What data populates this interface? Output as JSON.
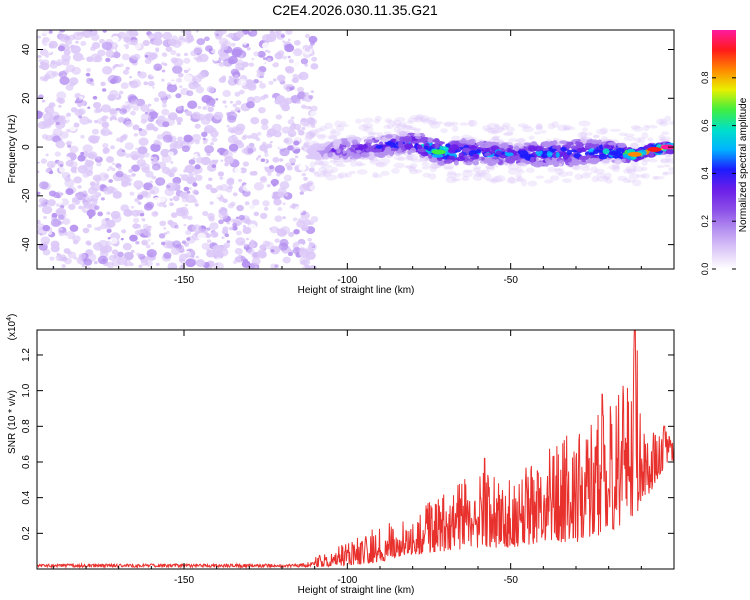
{
  "title": "C2E4.2026.030.11.35.G21",
  "chart_data": [
    {
      "type": "heatmap",
      "title": "C2E4.2026.030.11.35.G21",
      "xlabel": "Height of straight line (km)",
      "ylabel": "Frequency (Hz)",
      "xlim": [
        -195,
        0
      ],
      "ylim": [
        -50,
        48
      ],
      "xticks": [
        -150,
        -100,
        -50
      ],
      "xtick_labels": [
        "-150",
        "-100",
        "-50"
      ],
      "yticks": [
        -40,
        -20,
        0,
        20,
        40
      ],
      "ytick_labels": [
        "-40",
        "-20",
        "0",
        "20",
        "40"
      ],
      "colorbar": {
        "label": "Normalized spectral amplitude",
        "range": [
          0,
          1
        ],
        "ticks": [
          0.0,
          0.2,
          0.4,
          0.6,
          0.8
        ],
        "tick_labels": [
          "0.0",
          "0.2",
          "0.4",
          "0.6",
          "0.8"
        ]
      },
      "noise_region": {
        "x_from": -195,
        "x_to": -110,
        "y_from": -50,
        "y_to": 48,
        "typical_amplitude": 0.05
      },
      "signal_ridge": [
        {
          "x": -112,
          "y": -2,
          "width_hz": 4,
          "amplitude": 0.1
        },
        {
          "x": -100,
          "y": -1,
          "width_hz": 8,
          "amplitude": 0.35
        },
        {
          "x": -90,
          "y": 0,
          "width_hz": 8,
          "amplitude": 0.4
        },
        {
          "x": -80,
          "y": 2,
          "width_hz": 8,
          "amplitude": 0.45
        },
        {
          "x": -72,
          "y": -2,
          "width_hz": 9,
          "amplitude": 0.7
        },
        {
          "x": -60,
          "y": -2,
          "width_hz": 9,
          "amplitude": 0.5
        },
        {
          "x": -50,
          "y": -3,
          "width_hz": 8,
          "amplitude": 0.45
        },
        {
          "x": -40,
          "y": -3,
          "width_hz": 9,
          "amplitude": 0.5
        },
        {
          "x": -30,
          "y": -2,
          "width_hz": 10,
          "amplitude": 0.5
        },
        {
          "x": -20,
          "y": -2,
          "width_hz": 8,
          "amplitude": 0.55
        },
        {
          "x": -12,
          "y": -3,
          "width_hz": 5,
          "amplitude": 0.85
        },
        {
          "x": -6,
          "y": -1,
          "width_hz": 4,
          "amplitude": 0.9
        },
        {
          "x": -2,
          "y": 0,
          "width_hz": 4,
          "amplitude": 1.0
        }
      ]
    },
    {
      "type": "line",
      "xlabel": "Height of straight line (km)",
      "ylabel": "SNR (10 * v/v)",
      "y_multiplier_label": "(x10",
      "y_multiplier_exp": "4",
      "y_multiplier_close": ")",
      "xlim": [
        -195,
        0
      ],
      "ylim": [
        0,
        1.34
      ],
      "xticks": [
        -150,
        -100,
        -50
      ],
      "xtick_labels": [
        "-150",
        "-100",
        "-50"
      ],
      "yticks": [
        0.2,
        0.4,
        0.6,
        0.8,
        1.0,
        1.2
      ],
      "ytick_labels": [
        "0.2",
        "0.4",
        "0.6",
        "0.8",
        "1.0",
        "1.2"
      ],
      "series": [
        {
          "name": "SNR",
          "color": "#e8302c",
          "envelope": {
            "x": [
              -195,
              -150,
              -115,
              -110,
              -100,
              -90,
              -80,
              -70,
              -60,
              -50,
              -40,
              -30,
              -20,
              -12,
              -8,
              -5,
              -2,
              0
            ],
            "low": [
              0.01,
              0.01,
              0.01,
              0.01,
              0.02,
              0.04,
              0.08,
              0.1,
              0.12,
              0.12,
              0.15,
              0.15,
              0.2,
              0.3,
              0.4,
              0.5,
              0.6,
              0.6
            ],
            "high": [
              0.04,
              0.04,
              0.04,
              0.07,
              0.15,
              0.25,
              0.3,
              0.45,
              0.55,
              0.5,
              0.65,
              0.8,
              0.9,
              1.34,
              0.8,
              0.75,
              0.8,
              0.75
            ]
          },
          "peaks": [
            {
              "x": -58,
              "y": 0.62
            },
            {
              "x": -22,
              "y": 0.98
            },
            {
              "x": -12,
              "y": 1.34
            },
            {
              "x": -3,
              "y": 0.8
            }
          ]
        }
      ]
    }
  ],
  "colors": {
    "colormap": [
      "#ffffff",
      "#dcc8f8",
      "#b48ff0",
      "#8a4de8",
      "#6a1ee8",
      "#1c1cff",
      "#00b4ff",
      "#00e0c8",
      "#40ee40",
      "#e8f000",
      "#ff8800",
      "#ff1a1a",
      "#ff1aa0"
    ],
    "line": "#e8302c"
  }
}
